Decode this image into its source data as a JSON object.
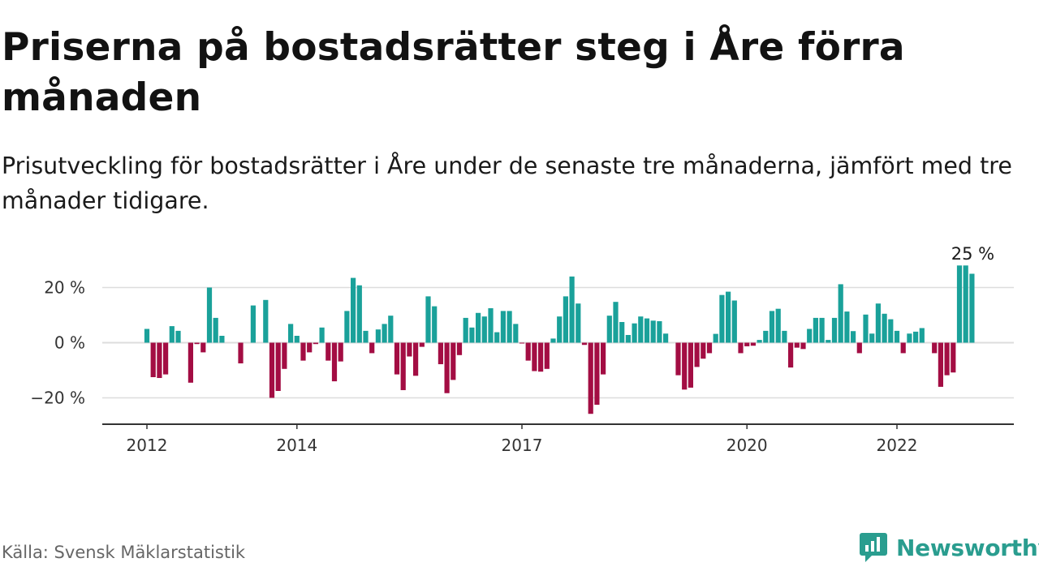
{
  "title": "Priserna på bostadsrätter steg i Åre förra månaden",
  "subtitle": "Prisutveckling för bostadsrätter i Åre under de senaste tre månaderna, jämfört med tre månader tidigare.",
  "source": "Källa: Svensk Mäklarstatistik",
  "brand": "Newsworthy",
  "colors": {
    "positive": "#1aa19a",
    "negative": "#a30d43",
    "brand": "#2a9d8f",
    "grid": "#dddddd",
    "axis": "#333333"
  },
  "chart_data": {
    "type": "bar",
    "unit": "%",
    "start": "2012-01",
    "x_ticks": [
      "2012",
      "2014",
      "2017",
      "2020",
      "2022"
    ],
    "y_ticks": [
      "−20 %",
      "0 %",
      "20 %"
    ],
    "ylim": [
      -26,
      30
    ],
    "annotation": "25 %",
    "grid": true,
    "values": [
      5,
      -12.5,
      -12.8,
      -11.5,
      6,
      4.3,
      0,
      -14.5,
      -0.5,
      -3.5,
      20,
      9,
      2.5,
      0,
      0,
      -7.5,
      0,
      13.5,
      0,
      15.5,
      -20,
      -17.5,
      -9.5,
      6.8,
      2.5,
      -6.5,
      -3.5,
      -0.5,
      5.5,
      -6.5,
      -14,
      -6.8,
      11.5,
      23.5,
      20.8,
      4.3,
      -3.8,
      4.8,
      6.8,
      9.8,
      -11.5,
      -17.2,
      -5,
      -12,
      -1.5,
      16.8,
      13.2,
      -7.8,
      -18.3,
      -13.5,
      -4.5,
      9,
      5.5,
      10.8,
      9.5,
      12.5,
      3.8,
      11.5,
      11.5,
      6.8,
      -0.3,
      -6.5,
      -10.3,
      -10.5,
      -9.5,
      1.5,
      9.5,
      16.8,
      24,
      14.2,
      -0.8,
      -25.8,
      -22.5,
      -11.5,
      9.8,
      14.8,
      7.5,
      2.8,
      7,
      9.5,
      8.8,
      8,
      7.8,
      3.3,
      0,
      -11.8,
      -17,
      -16.3,
      -8.8,
      -5.8,
      -3.8,
      3.2,
      17.3,
      18.5,
      15.3,
      -3.8,
      -1.3,
      -1.1,
      1,
      4.3,
      11.5,
      12.3,
      4.3,
      -9,
      -1.8,
      -2.3,
      5,
      9,
      9,
      1,
      9,
      21.2,
      11.3,
      4.2,
      -3.8,
      10.2,
      3.3,
      14.2,
      10.5,
      8.5,
      4.3,
      -3.8,
      3.3,
      4,
      5.3,
      0,
      -3.8,
      -16,
      -11.8,
      -10.8,
      28,
      28,
      25
    ]
  }
}
